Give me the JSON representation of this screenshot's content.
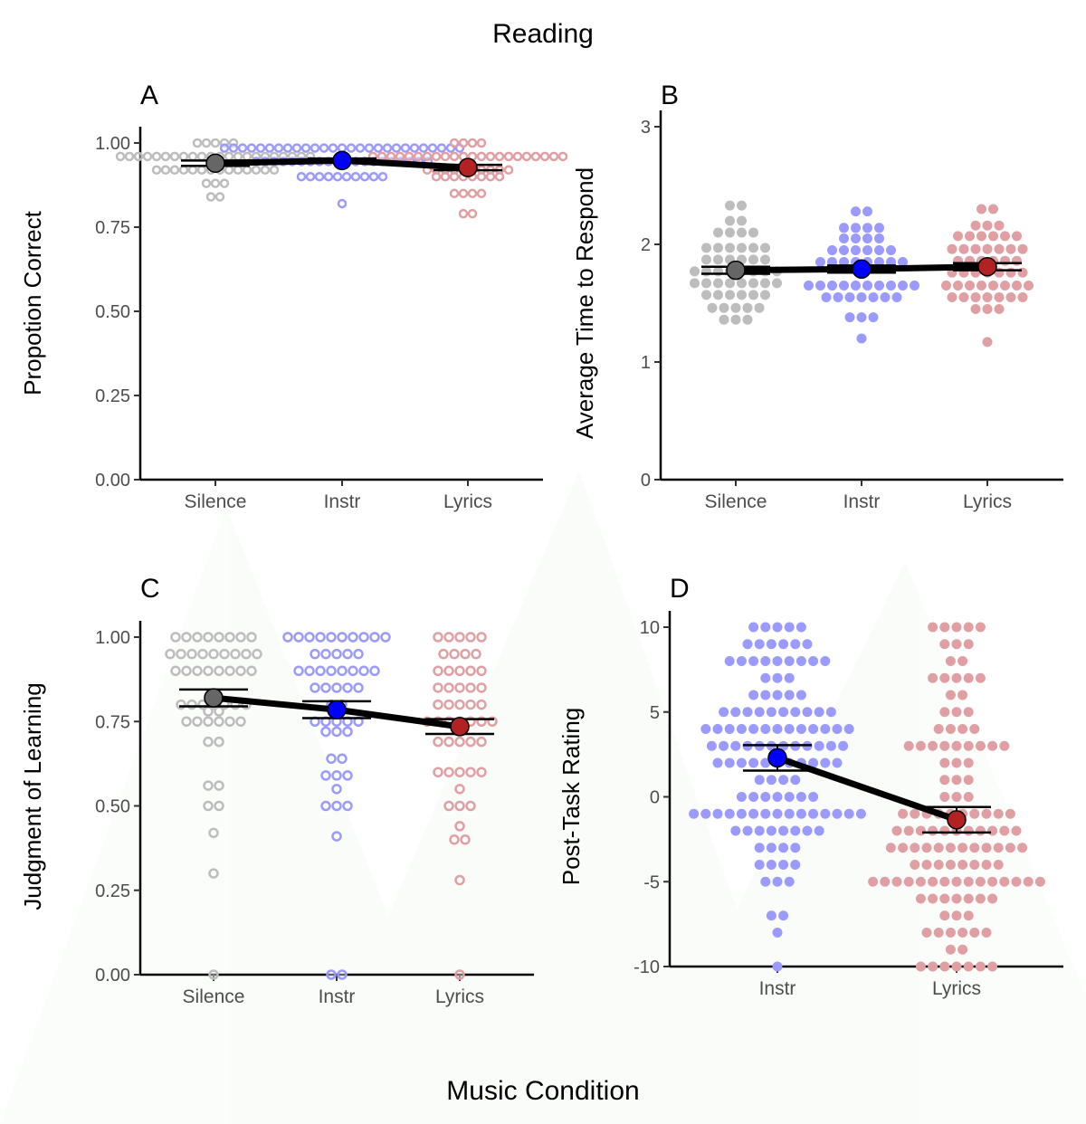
{
  "title": "Reading",
  "x_title": "Music Condition",
  "colors": {
    "silence_dot": "#bdbdbd",
    "instr_dot": "#9a9aff",
    "lyrics_dot": "#e0a0a3",
    "silence_mean": "#666666",
    "instr_mean": "#0000ff",
    "lyrics_mean": "#b22222",
    "line": "#000000"
  },
  "chart_data": [
    {
      "panel": "A",
      "type": "scatter",
      "subtype": "dotplot-with-means",
      "title": "",
      "xlabel": "",
      "ylabel": "Propotion Correct",
      "categories": [
        "Silence",
        "Instr",
        "Lyrics"
      ],
      "ylim": [
        0,
        1
      ],
      "yticks": [
        "0.00",
        "0.25",
        "0.50",
        "0.75",
        "1.00"
      ],
      "ytick_values": [
        0,
        0.25,
        0.5,
        0.75,
        1.0
      ],
      "dot_style": "ring",
      "dots": [
        {
          "category": "Silence",
          "rows": [
            [
              1.0,
              5
            ],
            [
              0.96,
              22
            ],
            [
              0.92,
              14
            ],
            [
              0.88,
              3
            ],
            [
              0.84,
              2
            ]
          ]
        },
        {
          "category": "Instr",
          "rows": [
            [
              0.985,
              27
            ],
            [
              0.945,
              20
            ],
            [
              0.9,
              10
            ],
            [
              0.82,
              1
            ]
          ]
        },
        {
          "category": "Lyrics",
          "rows": [
            [
              1.0,
              4
            ],
            [
              0.96,
              22
            ],
            [
              0.92,
              10
            ],
            [
              0.9,
              8
            ],
            [
              0.85,
              4
            ],
            [
              0.79,
              2
            ]
          ]
        }
      ],
      "means": [
        0.94,
        0.948,
        0.927
      ],
      "errors": [
        0.008,
        0.006,
        0.008
      ]
    },
    {
      "panel": "B",
      "type": "scatter",
      "subtype": "dotplot-with-means",
      "title": "",
      "xlabel": "",
      "ylabel": "Average Time to Respond",
      "categories": [
        "Silence",
        "Instr",
        "Lyrics"
      ],
      "ylim": [
        0,
        3
      ],
      "yticks": [
        "0",
        "1",
        "2",
        "3"
      ],
      "ytick_values": [
        0,
        1,
        2,
        3
      ],
      "dot_style": "filled",
      "dots": [
        {
          "category": "Silence",
          "rows": [
            [
              2.33,
              2
            ],
            [
              2.2,
              2
            ],
            [
              2.1,
              4
            ],
            [
              1.97,
              6
            ],
            [
              1.87,
              6
            ],
            [
              1.77,
              8
            ],
            [
              1.67,
              8
            ],
            [
              1.57,
              6
            ],
            [
              1.46,
              5
            ],
            [
              1.36,
              3
            ]
          ]
        },
        {
          "category": "Instr",
          "rows": [
            [
              2.28,
              2
            ],
            [
              2.14,
              4
            ],
            [
              2.05,
              4
            ],
            [
              1.95,
              6
            ],
            [
              1.85,
              8
            ],
            [
              1.65,
              10
            ],
            [
              1.55,
              7
            ],
            [
              1.38,
              3
            ],
            [
              1.2,
              1
            ]
          ]
        },
        {
          "category": "Lyrics",
          "rows": [
            [
              2.3,
              2
            ],
            [
              2.16,
              3
            ],
            [
              2.07,
              6
            ],
            [
              1.96,
              7
            ],
            [
              1.86,
              6
            ],
            [
              1.76,
              7
            ],
            [
              1.65,
              8
            ],
            [
              1.55,
              7
            ],
            [
              1.45,
              3
            ],
            [
              1.17,
              1
            ]
          ]
        }
      ],
      "means": [
        1.78,
        1.79,
        1.81
      ],
      "errors": [
        0.03,
        0.03,
        0.03
      ]
    },
    {
      "panel": "C",
      "type": "scatter",
      "subtype": "dotplot-with-means",
      "title": "",
      "xlabel": "",
      "ylabel": "Judgment of Learning",
      "categories": [
        "Silence",
        "Instr",
        "Lyrics"
      ],
      "ylim": [
        0,
        1
      ],
      "yticks": [
        "0.00",
        "0.25",
        "0.50",
        "0.75",
        "1.00"
      ],
      "ytick_values": [
        0,
        0.25,
        0.5,
        0.75,
        1.0
      ],
      "dot_style": "ring",
      "dots": [
        {
          "category": "Silence",
          "rows": [
            [
              1.0,
              8
            ],
            [
              0.95,
              9
            ],
            [
              0.9,
              8
            ],
            [
              0.8,
              7
            ],
            [
              0.78,
              2
            ],
            [
              0.75,
              6
            ],
            [
              0.69,
              2
            ],
            [
              0.56,
              2
            ],
            [
              0.5,
              2
            ],
            [
              0.42,
              1
            ],
            [
              0.3,
              1
            ],
            [
              0.0,
              1
            ]
          ]
        },
        {
          "category": "Instr",
          "rows": [
            [
              1.0,
              10
            ],
            [
              0.95,
              5
            ],
            [
              0.9,
              8
            ],
            [
              0.85,
              5
            ],
            [
              0.8,
              2
            ],
            [
              0.75,
              5
            ],
            [
              0.72,
              3
            ],
            [
              0.64,
              2
            ],
            [
              0.59,
              3
            ],
            [
              0.55,
              1
            ],
            [
              0.5,
              3
            ],
            [
              0.41,
              1
            ],
            [
              0.0,
              2
            ]
          ]
        },
        {
          "category": "Lyrics",
          "rows": [
            [
              1.0,
              5
            ],
            [
              0.95,
              4
            ],
            [
              0.9,
              5
            ],
            [
              0.85,
              5
            ],
            [
              0.8,
              5
            ],
            [
              0.75,
              7
            ],
            [
              0.69,
              5
            ],
            [
              0.6,
              5
            ],
            [
              0.55,
              1
            ],
            [
              0.5,
              3
            ],
            [
              0.44,
              1
            ],
            [
              0.4,
              2
            ],
            [
              0.28,
              1
            ],
            [
              0.0,
              1
            ]
          ]
        }
      ],
      "means": [
        0.82,
        0.785,
        0.735
      ],
      "errors": [
        0.025,
        0.025,
        0.022
      ]
    },
    {
      "panel": "D",
      "type": "scatter",
      "subtype": "dotplot-with-means",
      "title": "",
      "xlabel": "",
      "ylabel": "Post-Task Rating",
      "categories": [
        "Instr",
        "Lyrics"
      ],
      "ylim": [
        -10,
        10
      ],
      "yticks": [
        "-10",
        "-5",
        "0",
        "5",
        "10"
      ],
      "ytick_values": [
        -10,
        -5,
        0,
        5,
        10
      ],
      "dot_style": "filled",
      "dots": [
        {
          "category": "Instr",
          "rows": [
            [
              10,
              5
            ],
            [
              9,
              6
            ],
            [
              8,
              9
            ],
            [
              7,
              3
            ],
            [
              6,
              5
            ],
            [
              5,
              10
            ],
            [
              4,
              13
            ],
            [
              3,
              12
            ],
            [
              2,
              11
            ],
            [
              1,
              4
            ],
            [
              0,
              7
            ],
            [
              -1,
              15
            ],
            [
              -2,
              8
            ],
            [
              -3,
              4
            ],
            [
              -4,
              4
            ],
            [
              -5,
              3
            ],
            [
              -7,
              2
            ],
            [
              -8,
              1
            ],
            [
              -10,
              1
            ]
          ]
        },
        {
          "category": "Lyrics",
          "rows": [
            [
              10,
              5
            ],
            [
              9,
              3
            ],
            [
              8,
              2
            ],
            [
              7,
              5
            ],
            [
              6,
              2
            ],
            [
              5,
              3
            ],
            [
              4,
              4
            ],
            [
              3,
              9
            ],
            [
              2,
              3
            ],
            [
              1,
              3
            ],
            [
              0,
              3
            ],
            [
              -1,
              10
            ],
            [
              -2,
              11
            ],
            [
              -3,
              12
            ],
            [
              -4,
              8
            ],
            [
              -5,
              15
            ],
            [
              -6,
              7
            ],
            [
              -7,
              3
            ],
            [
              -8,
              6
            ],
            [
              -9,
              2
            ],
            [
              -10,
              7
            ]
          ]
        }
      ],
      "means": [
        2.3,
        -1.35
      ],
      "errors": [
        0.75,
        0.75
      ]
    }
  ]
}
